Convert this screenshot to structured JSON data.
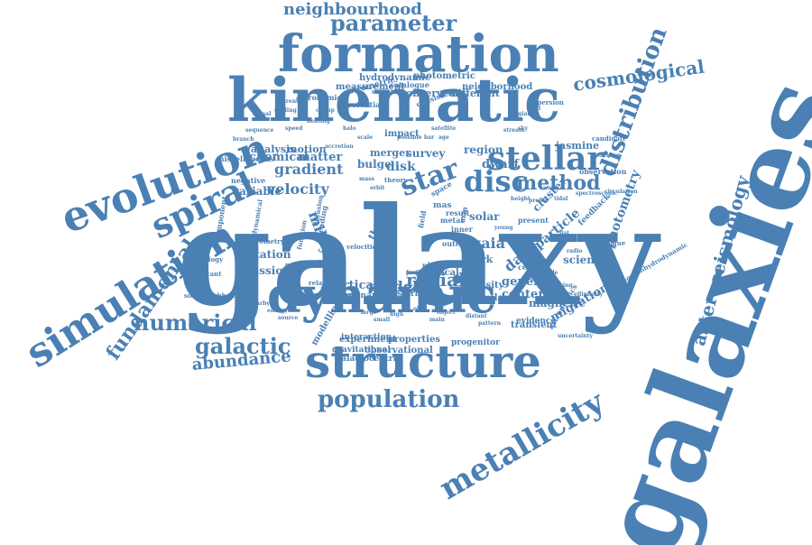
{
  "color": "#4a80b4",
  "words": [
    {
      "text": "galaxy",
      "size": 150,
      "rot": 0
    },
    {
      "text": "galaxies",
      "size": 120,
      "rot": -70
    },
    {
      "text": "kinematic",
      "size": 66,
      "rot": 0
    },
    {
      "text": "formation",
      "size": 56,
      "rot": 0
    },
    {
      "text": "structure",
      "size": 50,
      "rot": 0
    },
    {
      "text": "dynamic",
      "size": 54,
      "rot": 0
    },
    {
      "text": "evolution",
      "size": 46,
      "rot": -20
    },
    {
      "text": "simulation",
      "size": 44,
      "rot": -32
    },
    {
      "text": "spiral",
      "size": 38,
      "rot": -25
    },
    {
      "text": "stellar",
      "size": 36,
      "rot": 0
    },
    {
      "text": "metallicity",
      "size": 34,
      "rot": -30
    },
    {
      "text": "disc",
      "size": 32,
      "rot": 0
    },
    {
      "text": "star",
      "size": 30,
      "rot": -20
    },
    {
      "text": "distribution",
      "size": 26,
      "rot": -70
    },
    {
      "text": "population",
      "size": 26,
      "rot": 0
    },
    {
      "text": "numerical",
      "size": 24,
      "rot": 0
    },
    {
      "text": "galactic",
      "size": 24,
      "rot": 0
    },
    {
      "text": "method",
      "size": 22,
      "rot": 0
    },
    {
      "text": "parameter",
      "size": 24,
      "rot": 0
    },
    {
      "text": "cosmological",
      "size": 20,
      "rot": -8
    },
    {
      "text": "fundamental",
      "size": 22,
      "rot": -55
    },
    {
      "text": "asteroseismology",
      "size": 20,
      "rot": -75
    },
    {
      "text": "neighbourhood",
      "size": 18,
      "rot": 0
    },
    {
      "text": "abundance",
      "size": 18,
      "rot": -5
    },
    {
      "text": "radial",
      "size": 20,
      "rot": 0
    },
    {
      "text": "model",
      "size": 16,
      "rot": 0
    },
    {
      "text": "gradient",
      "size": 16,
      "rot": 0
    },
    {
      "text": "velocity",
      "size": 16,
      "rot": 0
    },
    {
      "text": "milky",
      "size": 16,
      "rot": 70
    },
    {
      "text": "gaia",
      "size": 16,
      "rot": 0
    },
    {
      "text": "data",
      "size": 16,
      "rot": -40
    },
    {
      "text": "photometry",
      "size": 14,
      "rot": -70
    },
    {
      "text": "vertical",
      "size": 13,
      "rot": 0
    },
    {
      "text": "chemical",
      "size": 13,
      "rot": 0
    },
    {
      "text": "matter",
      "size": 13,
      "rot": 0
    },
    {
      "text": "variable",
      "size": 12,
      "rot": 0
    },
    {
      "text": "rotation",
      "size": 12,
      "rot": 0
    },
    {
      "text": "mission",
      "size": 12,
      "rot": 0
    },
    {
      "text": "migration",
      "size": 13,
      "rot": -30
    },
    {
      "text": "particle",
      "size": 14,
      "rot": -40
    },
    {
      "text": "cluster",
      "size": 12,
      "rot": -45
    },
    {
      "text": "science",
      "size": 12,
      "rot": 0
    },
    {
      "text": "general",
      "size": 13,
      "rot": 0
    },
    {
      "text": "content",
      "size": 13,
      "rot": 0
    },
    {
      "text": "magnetic",
      "size": 12,
      "rot": 0
    },
    {
      "text": "solar",
      "size": 12,
      "rot": 0
    },
    {
      "text": "dwarf",
      "size": 13,
      "rot": 0
    },
    {
      "text": "survey",
      "size": 12,
      "rot": 0
    },
    {
      "text": "region",
      "size": 12,
      "rot": 0
    },
    {
      "text": "merger",
      "size": 11,
      "rot": 0
    },
    {
      "text": "bulge",
      "size": 12,
      "rot": 0
    },
    {
      "text": "disk",
      "size": 14,
      "rot": 0
    },
    {
      "text": "jasmine",
      "size": 11,
      "rot": 0
    },
    {
      "text": "observed",
      "size": 11,
      "rot": 0
    },
    {
      "text": "different",
      "size": 11,
      "rot": 0
    },
    {
      "text": "measurement",
      "size": 10,
      "rot": 0
    },
    {
      "text": "hydrodynamic",
      "size": 10,
      "rot": 0
    },
    {
      "text": "photometric",
      "size": 10,
      "rot": 0
    },
    {
      "text": "neighborhood",
      "size": 10,
      "rot": 0
    },
    {
      "text": "impact",
      "size": 10,
      "rot": 0
    },
    {
      "text": "analysis",
      "size": 11,
      "rot": 0
    },
    {
      "text": "motion",
      "size": 11,
      "rot": 0
    },
    {
      "text": "thick",
      "size": 11,
      "rot": -60
    },
    {
      "text": "dark",
      "size": 11,
      "rot": 0
    },
    {
      "text": "local",
      "size": 10,
      "rot": 0
    },
    {
      "text": "density",
      "size": 10,
      "rot": 0
    },
    {
      "text": "similar",
      "size": 10,
      "rot": 0
    },
    {
      "text": "modelling",
      "size": 10,
      "rot": -60
    },
    {
      "text": "experiment",
      "size": 10,
      "rot": 0
    },
    {
      "text": "properties",
      "size": 10,
      "rot": 0
    },
    {
      "text": "observational",
      "size": 10,
      "rot": 0
    },
    {
      "text": "transient",
      "size": 10,
      "rot": 0
    },
    {
      "text": "evidence",
      "size": 9,
      "rot": 0
    },
    {
      "text": "progenitor",
      "size": 9,
      "rot": 0
    },
    {
      "text": "galactocentric",
      "size": 9,
      "rot": 0
    },
    {
      "text": "gravitational",
      "size": 9,
      "rot": 0
    },
    {
      "text": "interaction",
      "size": 9,
      "rot": 0
    },
    {
      "text": "extinction",
      "size": 9,
      "rot": 0
    },
    {
      "text": "resonance",
      "size": 9,
      "rot": 0
    },
    {
      "text": "starburst",
      "size": 9,
      "rot": 0
    },
    {
      "text": "astrometric",
      "size": 9,
      "rot": -15
    },
    {
      "text": "catalogue",
      "size": 8,
      "rot": 0
    },
    {
      "text": "potential",
      "size": 8,
      "rot": 0
    },
    {
      "text": "astronomical",
      "size": 8,
      "rot": 0
    },
    {
      "text": "miscellaneous",
      "size": 8,
      "rot": 0
    },
    {
      "text": "negative",
      "size": 8,
      "rot": 0
    },
    {
      "text": "technology",
      "size": 7,
      "rot": 0
    },
    {
      "text": "significant",
      "size": 7,
      "rot": 0
    },
    {
      "text": "positive",
      "size": 7,
      "rot": 0
    },
    {
      "text": "relation",
      "size": 7,
      "rot": 0
    },
    {
      "text": "solarneighbourhood",
      "size": 7,
      "rot": 0
    },
    {
      "text": "component",
      "size": 8,
      "rot": -80
    },
    {
      "text": "astrometry",
      "size": 7,
      "rot": 0
    },
    {
      "text": "feedback",
      "size": 9,
      "rot": -45
    },
    {
      "text": "centre",
      "size": 8,
      "rot": 0
    },
    {
      "text": "technique",
      "size": 7,
      "rot": 0
    },
    {
      "text": "observation",
      "size": 8,
      "rot": 0
    },
    {
      "text": "magnetohydrodynamic",
      "size": 7,
      "rot": -30
    },
    {
      "text": "astrophysics",
      "size": 8,
      "rot": -60
    },
    {
      "text": "consistent",
      "size": 8,
      "rot": -20
    },
    {
      "text": "dispersion",
      "size": 7,
      "rot": 0
    },
    {
      "text": "result",
      "size": 8,
      "rot": 0
    },
    {
      "text": "present",
      "size": 8,
      "rot": 0
    },
    {
      "text": "theory",
      "size": 7,
      "rot": 0
    },
    {
      "text": "space",
      "size": 8,
      "rot": -30
    },
    {
      "text": "mas",
      "size": 9,
      "rot": 0
    },
    {
      "text": "metal",
      "size": 8,
      "rot": 0
    },
    {
      "text": "inner",
      "size": 8,
      "rot": 0
    },
    {
      "text": "outer",
      "size": 8,
      "rot": 0
    },
    {
      "text": "field",
      "size": 8,
      "rot": -80
    },
    {
      "text": "arm",
      "size": 8,
      "rot": -80
    },
    {
      "text": "phys",
      "size": 8,
      "rot": 0
    },
    {
      "text": "leading",
      "size": 8,
      "rot": -80
    },
    {
      "text": "nuclear",
      "size": 7,
      "rot": 0
    },
    {
      "text": "function",
      "size": 7,
      "rot": -80
    },
    {
      "text": "diffusion",
      "size": 7,
      "rot": -80
    },
    {
      "text": "dynamical",
      "size": 7,
      "rot": -80
    },
    {
      "text": "velocities",
      "size": 7,
      "rot": 0
    },
    {
      "text": "sample",
      "size": 7,
      "rot": 0
    },
    {
      "text": "candidate",
      "size": 7,
      "rot": 0
    },
    {
      "text": "breathing",
      "size": 6,
      "rot": 0
    },
    {
      "text": "circulation",
      "size": 6,
      "rot": 0
    },
    {
      "text": "possible",
      "size": 6,
      "rot": 0
    },
    {
      "text": "flat",
      "size": 6,
      "rot": 0
    },
    {
      "text": "radio",
      "size": 6,
      "rot": 0
    },
    {
      "text": "lensing",
      "size": 6,
      "rot": 0
    },
    {
      "text": "ellipticity",
      "size": 6,
      "rot": 0
    },
    {
      "text": "uncertainty",
      "size": 6,
      "rot": 0
    },
    {
      "text": "halo",
      "size": 6,
      "rot": 0
    },
    {
      "text": "scale",
      "size": 6,
      "rot": 0
    },
    {
      "text": "bar",
      "size": 6,
      "rot": 0
    },
    {
      "text": "age",
      "size": 6,
      "rot": 0
    },
    {
      "text": "mass",
      "size": 6,
      "rot": 0
    },
    {
      "text": "orbit",
      "size": 6,
      "rot": 0
    },
    {
      "text": "accretion",
      "size": 6,
      "rot": 0
    },
    {
      "text": "satellite",
      "size": 6,
      "rot": 0
    },
    {
      "text": "stream",
      "size": 6,
      "rot": 0
    },
    {
      "text": "sky",
      "size": 6,
      "rot": 0
    },
    {
      "text": "height",
      "size": 6,
      "rot": 0
    },
    {
      "text": "profile",
      "size": 6,
      "rot": 0
    },
    {
      "text": "wave",
      "size": 6,
      "rot": 0
    },
    {
      "text": "tidal",
      "size": 6,
      "rot": 0
    },
    {
      "text": "spectroscopic",
      "size": 6,
      "rot": 0
    },
    {
      "text": "binary",
      "size": 6,
      "rot": 0
    },
    {
      "text": "object",
      "size": 6,
      "rot": 0
    },
    {
      "text": "mode",
      "size": 6,
      "rot": 0
    },
    {
      "text": "gas",
      "size": 6,
      "rot": 0
    },
    {
      "text": "energy",
      "size": 6,
      "rot": 0
    },
    {
      "text": "source",
      "size": 6,
      "rot": 0
    },
    {
      "text": "young",
      "size": 6,
      "rot": 0
    },
    {
      "text": "old",
      "size": 6,
      "rot": 0
    },
    {
      "text": "main",
      "size": 6,
      "rot": 0
    },
    {
      "text": "large",
      "size": 6,
      "rot": 0
    },
    {
      "text": "small",
      "size": 6,
      "rot": 0
    },
    {
      "text": "high",
      "size": 6,
      "rot": 0
    },
    {
      "text": "low",
      "size": 6,
      "rot": 0
    },
    {
      "text": "nearby",
      "size": 6,
      "rot": 0
    },
    {
      "text": "distant",
      "size": 6,
      "rot": 0
    },
    {
      "text": "pattern",
      "size": 6,
      "rot": 0
    },
    {
      "text": "speed",
      "size": 6,
      "rot": 0
    },
    {
      "text": "heating",
      "size": 6,
      "rot": 0
    },
    {
      "text": "cooling",
      "size": 6,
      "rot": 0
    },
    {
      "text": "trend",
      "size": 6,
      "rot": 0
    },
    {
      "text": "signal",
      "size": 6,
      "rot": 0
    },
    {
      "text": "sequence",
      "size": 6,
      "rot": 0
    },
    {
      "text": "branch",
      "size": 6,
      "rot": 0
    },
    {
      "text": "giant",
      "size": 6,
      "rot": 0
    },
    {
      "text": "red",
      "size": 6,
      "rot": 0
    },
    {
      "text": "clump",
      "size": 6,
      "rot": 0
    },
    {
      "text": "frequency",
      "size": 6,
      "rot": 0
    },
    {
      "text": "oscillation",
      "size": 6,
      "rot": 0
    },
    {
      "text": "period",
      "size": 6,
      "rot": 0
    },
    {
      "text": "amplitude",
      "size": 6,
      "rot": 0
    }
  ]
}
